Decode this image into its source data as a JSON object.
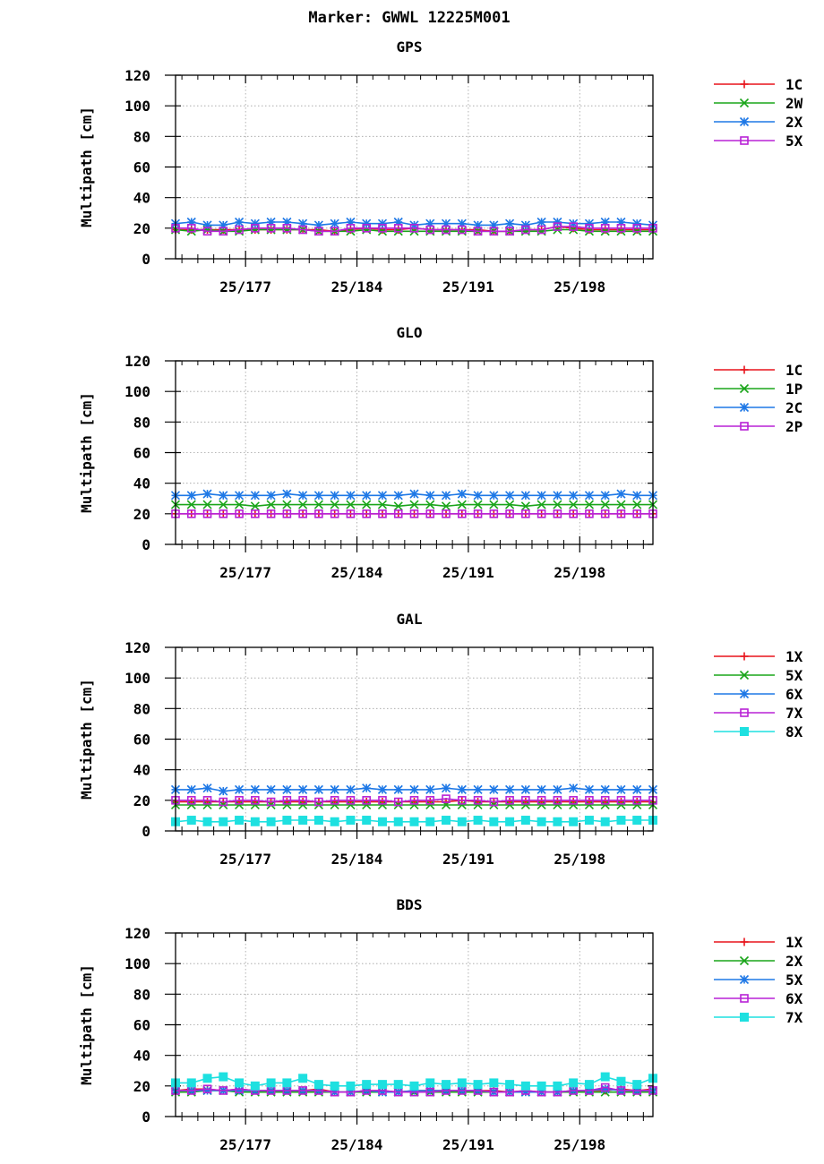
{
  "title": "Marker: GWWL 12225M001",
  "colors": {
    "red": "#e8141c",
    "green": "#1aa51a",
    "blue": "#1e78e6",
    "magenta": "#b822d6",
    "cyan": "#1ee0e0"
  },
  "chart_data": [
    {
      "type": "line",
      "title": "GPS",
      "ylabel": "Multipath [cm]",
      "ylim": [
        0,
        120
      ],
      "yticks": [
        "0",
        "20",
        "40",
        "60",
        "80",
        "100",
        "120"
      ],
      "xlim": [
        172.6,
        202.6
      ],
      "xtick_positions": [
        177,
        184,
        191,
        198
      ],
      "xtick_labels": [
        "25/177",
        "25/184",
        "25/191",
        "25/198"
      ],
      "grid": true,
      "legend_position": "right",
      "x": [
        172.6,
        173.6,
        174.6,
        175.6,
        176.6,
        177.6,
        178.6,
        179.6,
        180.6,
        181.6,
        182.6,
        183.6,
        184.6,
        185.6,
        186.6,
        187.6,
        188.6,
        189.6,
        190.6,
        191.6,
        192.6,
        193.6,
        194.6,
        195.6,
        196.6,
        197.6,
        198.6,
        199.6,
        200.6,
        201.6,
        202.6
      ],
      "series": [
        {
          "name": "1C",
          "color": "#e8141c",
          "marker": "plus",
          "values": [
            19,
            19,
            19,
            19,
            19,
            19,
            19,
            19,
            19,
            19,
            18,
            19,
            20,
            19,
            19,
            20,
            19,
            19,
            19,
            19,
            18,
            18,
            19,
            19,
            21,
            20,
            19,
            19,
            19,
            19,
            19
          ]
        },
        {
          "name": "2W",
          "color": "#1aa51a",
          "marker": "cross",
          "values": [
            19,
            18,
            19,
            18,
            18,
            19,
            19,
            19,
            19,
            18,
            18,
            18,
            19,
            18,
            18,
            18,
            18,
            18,
            18,
            18,
            18,
            18,
            18,
            18,
            19,
            19,
            18,
            18,
            18,
            18,
            18
          ]
        },
        {
          "name": "2X",
          "color": "#1e78e6",
          "marker": "star",
          "values": [
            23,
            24,
            22,
            22,
            24,
            23,
            24,
            24,
            23,
            22,
            23,
            24,
            23,
            23,
            24,
            22,
            23,
            23,
            23,
            22,
            22,
            23,
            22,
            24,
            24,
            23,
            23,
            24,
            24,
            23,
            22
          ]
        },
        {
          "name": "5X",
          "color": "#b822d6",
          "marker": "square",
          "values": [
            20,
            20,
            18,
            18,
            19,
            20,
            20,
            20,
            19,
            18,
            18,
            20,
            20,
            20,
            20,
            20,
            19,
            19,
            19,
            18,
            18,
            18,
            19,
            19,
            21,
            21,
            20,
            20,
            20,
            20,
            20
          ]
        }
      ]
    },
    {
      "type": "line",
      "title": "GLO",
      "ylabel": "Multipath [cm]",
      "ylim": [
        0,
        120
      ],
      "yticks": [
        "0",
        "20",
        "40",
        "60",
        "80",
        "100",
        "120"
      ],
      "xlim": [
        172.6,
        202.6
      ],
      "xtick_positions": [
        177,
        184,
        191,
        198
      ],
      "xtick_labels": [
        "25/177",
        "25/184",
        "25/191",
        "25/198"
      ],
      "grid": true,
      "legend_position": "right",
      "x": [
        172.6,
        173.6,
        174.6,
        175.6,
        176.6,
        177.6,
        178.6,
        179.6,
        180.6,
        181.6,
        182.6,
        183.6,
        184.6,
        185.6,
        186.6,
        187.6,
        188.6,
        189.6,
        190.6,
        191.6,
        192.6,
        193.6,
        194.6,
        195.6,
        196.6,
        197.6,
        198.6,
        199.6,
        200.6,
        201.6,
        202.6
      ],
      "series": [
        {
          "name": "1C",
          "color": "#e8141c",
          "marker": "plus",
          "values": [
            20,
            20,
            20,
            20,
            20,
            20,
            20,
            20,
            20,
            20,
            20,
            20,
            20,
            20,
            20,
            20,
            20,
            20,
            20,
            20,
            20,
            20,
            20,
            20,
            20,
            20,
            20,
            20,
            20,
            20,
            20
          ]
        },
        {
          "name": "1P",
          "color": "#1aa51a",
          "marker": "cross",
          "values": [
            26,
            26,
            26,
            26,
            26,
            25,
            26,
            26,
            26,
            26,
            26,
            26,
            26,
            26,
            25,
            26,
            26,
            25,
            26,
            26,
            26,
            26,
            25,
            26,
            26,
            26,
            26,
            26,
            26,
            26,
            26
          ]
        },
        {
          "name": "2C",
          "color": "#1e78e6",
          "marker": "star",
          "values": [
            32,
            32,
            33,
            32,
            32,
            32,
            32,
            33,
            32,
            32,
            32,
            32,
            32,
            32,
            32,
            33,
            32,
            32,
            33,
            32,
            32,
            32,
            32,
            32,
            32,
            32,
            32,
            32,
            33,
            32,
            32
          ]
        },
        {
          "name": "2P",
          "color": "#b822d6",
          "marker": "square",
          "values": [
            20,
            20,
            20,
            20,
            20,
            20,
            20,
            20,
            20,
            20,
            20,
            20,
            20,
            20,
            20,
            20,
            20,
            20,
            20,
            20,
            20,
            20,
            20,
            20,
            20,
            20,
            20,
            20,
            20,
            20,
            20
          ]
        }
      ]
    },
    {
      "type": "line",
      "title": "GAL",
      "ylabel": "Multipath [cm]",
      "ylim": [
        0,
        120
      ],
      "yticks": [
        "0",
        "20",
        "40",
        "60",
        "80",
        "100",
        "120"
      ],
      "xlim": [
        172.6,
        202.6
      ],
      "xtick_positions": [
        177,
        184,
        191,
        198
      ],
      "xtick_labels": [
        "25/177",
        "25/184",
        "25/191",
        "25/198"
      ],
      "grid": true,
      "legend_position": "right",
      "x": [
        172.6,
        173.6,
        174.6,
        175.6,
        176.6,
        177.6,
        178.6,
        179.6,
        180.6,
        181.6,
        182.6,
        183.6,
        184.6,
        185.6,
        186.6,
        187.6,
        188.6,
        189.6,
        190.6,
        191.6,
        192.6,
        193.6,
        194.6,
        195.6,
        196.6,
        197.6,
        198.6,
        199.6,
        200.6,
        201.6,
        202.6
      ],
      "series": [
        {
          "name": "1X",
          "color": "#e8141c",
          "marker": "plus",
          "values": [
            19,
            19,
            19,
            19,
            19,
            19,
            19,
            19,
            19,
            19,
            19,
            19,
            19,
            19,
            19,
            19,
            19,
            19,
            20,
            19,
            19,
            19,
            19,
            19,
            19,
            19,
            19,
            19,
            19,
            19,
            19
          ]
        },
        {
          "name": "5X",
          "color": "#1aa51a",
          "marker": "cross",
          "values": [
            17,
            17,
            17,
            17,
            17,
            17,
            17,
            17,
            17,
            17,
            17,
            17,
            17,
            17,
            17,
            17,
            17,
            17,
            17,
            17,
            17,
            17,
            17,
            17,
            17,
            17,
            17,
            17,
            17,
            17,
            17
          ]
        },
        {
          "name": "6X",
          "color": "#1e78e6",
          "marker": "star",
          "values": [
            27,
            27,
            28,
            26,
            27,
            27,
            27,
            27,
            27,
            27,
            27,
            27,
            28,
            27,
            27,
            27,
            27,
            28,
            27,
            27,
            27,
            27,
            27,
            27,
            27,
            28,
            27,
            27,
            27,
            27,
            27
          ]
        },
        {
          "name": "7X",
          "color": "#b822d6",
          "marker": "square",
          "values": [
            20,
            20,
            20,
            19,
            20,
            20,
            19,
            20,
            20,
            19,
            20,
            20,
            20,
            20,
            19,
            20,
            20,
            21,
            20,
            20,
            19,
            20,
            20,
            20,
            20,
            20,
            20,
            20,
            20,
            20,
            20
          ]
        },
        {
          "name": "8X",
          "color": "#1ee0e0",
          "marker": "filled-square",
          "values": [
            6,
            7,
            6,
            6,
            7,
            6,
            6,
            7,
            7,
            7,
            6,
            7,
            7,
            6,
            6,
            6,
            6,
            7,
            6,
            7,
            6,
            6,
            7,
            6,
            6,
            6,
            7,
            6,
            7,
            7,
            7
          ]
        }
      ]
    },
    {
      "type": "line",
      "title": "BDS",
      "ylabel": "Multipath [cm]",
      "ylim": [
        0,
        120
      ],
      "yticks": [
        "0",
        "20",
        "40",
        "60",
        "80",
        "100",
        "120"
      ],
      "xlim": [
        172.6,
        202.6
      ],
      "xtick_positions": [
        177,
        184,
        191,
        198
      ],
      "xtick_labels": [
        "25/177",
        "25/184",
        "25/191",
        "25/198"
      ],
      "grid": true,
      "legend_position": "right",
      "x": [
        172.6,
        173.6,
        174.6,
        175.6,
        176.6,
        177.6,
        178.6,
        179.6,
        180.6,
        181.6,
        182.6,
        183.6,
        184.6,
        185.6,
        186.6,
        187.6,
        188.6,
        189.6,
        190.6,
        191.6,
        192.6,
        193.6,
        194.6,
        195.6,
        196.6,
        197.6,
        198.6,
        199.6,
        200.6,
        201.6,
        202.6
      ],
      "series": [
        {
          "name": "1X",
          "color": "#e8141c",
          "marker": "plus",
          "values": [
            17,
            18,
            18,
            17,
            18,
            17,
            17,
            17,
            17,
            18,
            16,
            16,
            17,
            17,
            16,
            17,
            17,
            17,
            17,
            17,
            17,
            16,
            17,
            16,
            16,
            17,
            17,
            17,
            18,
            17,
            18
          ]
        },
        {
          "name": "2X",
          "color": "#1aa51a",
          "marker": "cross",
          "values": [
            16,
            16,
            17,
            17,
            16,
            16,
            16,
            16,
            16,
            16,
            16,
            16,
            16,
            16,
            16,
            16,
            16,
            16,
            16,
            16,
            16,
            16,
            16,
            16,
            16,
            16,
            16,
            16,
            16,
            16,
            16
          ]
        },
        {
          "name": "5X",
          "color": "#1e78e6",
          "marker": "star",
          "values": [
            17,
            17,
            17,
            17,
            17,
            17,
            17,
            17,
            17,
            17,
            16,
            16,
            17,
            16,
            16,
            17,
            17,
            17,
            17,
            17,
            16,
            16,
            16,
            16,
            16,
            17,
            17,
            18,
            17,
            17,
            17
          ]
        },
        {
          "name": "6X",
          "color": "#b822d6",
          "marker": "square",
          "values": [
            17,
            17,
            18,
            17,
            18,
            17,
            17,
            17,
            17,
            17,
            16,
            16,
            17,
            17,
            16,
            16,
            16,
            17,
            17,
            17,
            16,
            16,
            17,
            16,
            16,
            17,
            17,
            19,
            17,
            17,
            17
          ]
        },
        {
          "name": "7X",
          "color": "#1ee0e0",
          "marker": "filled-square",
          "values": [
            22,
            22,
            25,
            26,
            22,
            20,
            22,
            22,
            25,
            21,
            20,
            20,
            21,
            21,
            21,
            20,
            22,
            21,
            22,
            21,
            22,
            21,
            20,
            20,
            20,
            22,
            21,
            26,
            23,
            21,
            25
          ]
        }
      ]
    }
  ]
}
